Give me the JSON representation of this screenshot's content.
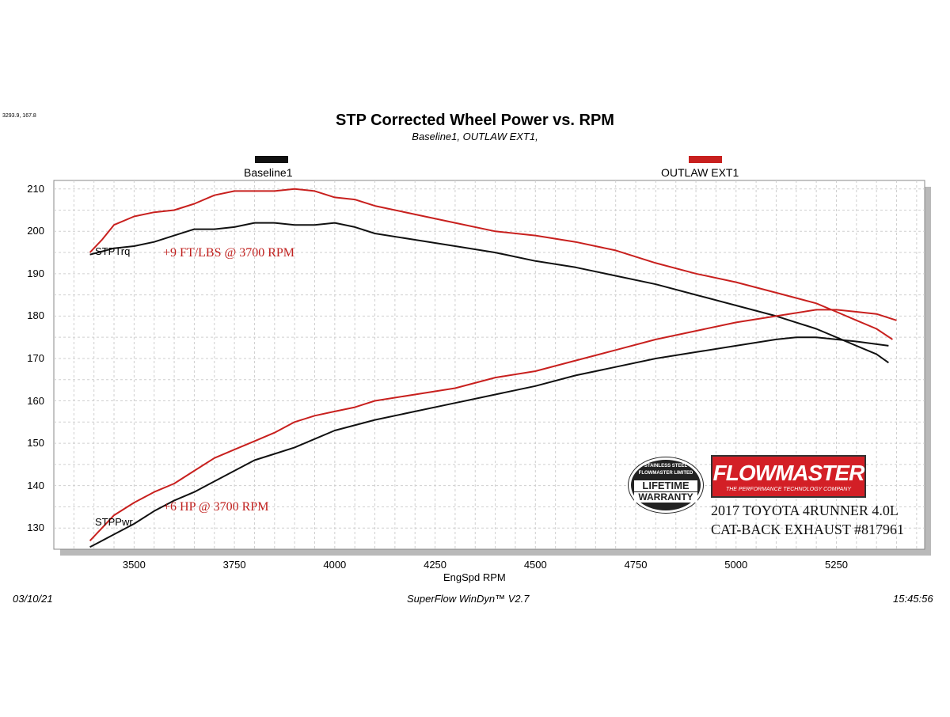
{
  "corner_readout": "3293.9, 167.8",
  "footer": {
    "date": "03/10/21",
    "software": "SuperFlow WinDyn™  V2.7",
    "time": "15:45:56"
  },
  "annotations": {
    "torque_gain": "+9 FT/LBS @ 3700 RPM",
    "hp_gain": "+6 HP @ 3700 RPM",
    "torque_curve_label": "STPTrq",
    "power_curve_label": "STPPwr"
  },
  "branding": {
    "logo_text": "FLOWMASTER",
    "logo_tagline": "THE PERFORMANCE TECHNOLOGY COMPANY",
    "badge_line1": "STAINLESS STEEL",
    "badge_line2": "FLOWMASTER LIMITED",
    "badge_line3": "LIFETIME",
    "badge_line4": "WARRANTY",
    "caption_line1": "2017 TOYOTA 4RUNNER 4.0L",
    "caption_line2": "CAT-BACK EXHAUST #817961"
  },
  "colors": {
    "baseline": "#111111",
    "outlaw": "#c8201e",
    "grid": "#cfcfcf",
    "plot_border": "#888888"
  },
  "chart_data": {
    "type": "line",
    "title": "STP Corrected Wheel Power vs. RPM",
    "subtitle": "Baseline1,  OUTLAW EXT1,",
    "xlabel": "EngSpd  RPM",
    "ylabel": "",
    "xlim": [
      3300,
      5470
    ],
    "ylim": [
      125,
      212
    ],
    "x_ticks": [
      3500,
      3750,
      4000,
      4250,
      4500,
      4750,
      5000,
      5250
    ],
    "y_ticks": [
      130,
      140,
      150,
      160,
      170,
      180,
      190,
      200,
      210
    ],
    "grid": true,
    "legend": [
      "Baseline1",
      "OUTLAW EXT1"
    ],
    "legend_placement": "top",
    "series": [
      {
        "name": "Baseline1",
        "measure": "STPTrq",
        "color": "#111111",
        "x": [
          3390,
          3450,
          3500,
          3550,
          3600,
          3650,
          3700,
          3750,
          3800,
          3850,
          3900,
          3950,
          4000,
          4050,
          4100,
          4200,
          4300,
          4400,
          4500,
          4600,
          4700,
          4800,
          4900,
          5000,
          5100,
          5200,
          5250,
          5300,
          5350,
          5380
        ],
        "values": [
          194.5,
          196,
          196.5,
          197.5,
          199,
          200.5,
          200.5,
          201,
          202,
          202,
          201.5,
          201.5,
          202,
          201,
          199.5,
          198,
          196.5,
          195,
          193,
          191.5,
          189.5,
          187.5,
          185,
          182.5,
          180,
          177,
          175,
          173,
          171,
          169
        ]
      },
      {
        "name": "OUTLAW EXT1",
        "measure": "STPTrq",
        "color": "#c8201e",
        "x": [
          3390,
          3420,
          3450,
          3500,
          3550,
          3600,
          3650,
          3700,
          3750,
          3800,
          3850,
          3900,
          3950,
          4000,
          4050,
          4100,
          4200,
          4300,
          4400,
          4500,
          4600,
          4700,
          4800,
          4900,
          5000,
          5100,
          5200,
          5250,
          5300,
          5350,
          5390
        ],
        "values": [
          195,
          198,
          201.5,
          203.5,
          204.5,
          205,
          206.5,
          208.5,
          209.5,
          209.5,
          209.5,
          210,
          209.5,
          208,
          207.5,
          206,
          204,
          202,
          200,
          199,
          197.5,
          195.5,
          192.5,
          190,
          188,
          185.5,
          183,
          181,
          179,
          177,
          174.5
        ]
      },
      {
        "name": "Baseline1",
        "measure": "STPPwr",
        "color": "#111111",
        "x": [
          3390,
          3450,
          3500,
          3550,
          3600,
          3650,
          3700,
          3750,
          3800,
          3850,
          3900,
          3950,
          4000,
          4100,
          4200,
          4300,
          4400,
          4500,
          4600,
          4700,
          4800,
          4900,
          5000,
          5100,
          5150,
          5200,
          5250,
          5300,
          5380
        ],
        "values": [
          125.5,
          128.5,
          131,
          134,
          136.5,
          138.5,
          141,
          143.5,
          146,
          147.5,
          149,
          151,
          153,
          155.5,
          157.5,
          159.5,
          161.5,
          163.5,
          166,
          168,
          170,
          171.5,
          173,
          174.5,
          175,
          175,
          174.5,
          174,
          173
        ]
      },
      {
        "name": "OUTLAW EXT1",
        "measure": "STPPwr",
        "color": "#c8201e",
        "x": [
          3390,
          3420,
          3450,
          3500,
          3550,
          3600,
          3650,
          3700,
          3750,
          3800,
          3850,
          3900,
          3950,
          4000,
          4050,
          4100,
          4200,
          4300,
          4400,
          4500,
          4600,
          4700,
          4800,
          4900,
          5000,
          5100,
          5200,
          5250,
          5300,
          5350,
          5400
        ],
        "values": [
          127,
          130,
          133,
          136,
          138.5,
          140.5,
          143.5,
          146.5,
          148.5,
          150.5,
          152.5,
          155,
          156.5,
          157.5,
          158.5,
          160,
          161.5,
          163,
          165.5,
          167,
          169.5,
          172,
          174.5,
          176.5,
          178.5,
          180,
          181.5,
          181.5,
          181,
          180.5,
          179
        ]
      }
    ]
  }
}
